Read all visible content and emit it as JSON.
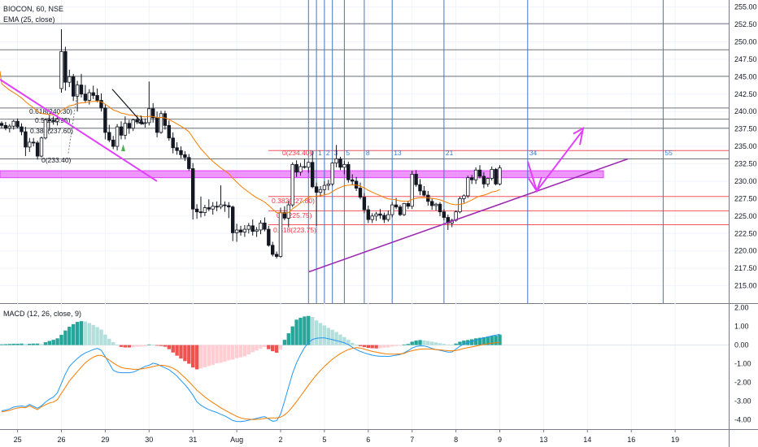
{
  "header": {
    "symbol_line": "BIOCON, 60, NSE",
    "ema_line": "EMA (25, close)",
    "macd_line": "MACD (12, 26, close, 9)"
  },
  "chart_data": {
    "type": "candlestick",
    "symbol": "BIOCON",
    "interval": "60",
    "exchange": "NSE",
    "price_axis": {
      "ylim": [
        212.5,
        256
      ],
      "ticks": [
        "255.00",
        "252.50",
        "250.00",
        "247.50",
        "245.00",
        "242.50",
        "240.00",
        "237.50",
        "235.00",
        "232.50",
        "230.00",
        "227.50",
        "225.00",
        "222.50",
        "220.00",
        "217.50",
        "215.00"
      ]
    },
    "macd_axis": {
      "ylim": [
        -4.5,
        2.2
      ],
      "ticks": [
        "2.00",
        "1.00",
        "0.00",
        "-1.00",
        "-2.00",
        "-3.00",
        "-4.00"
      ]
    },
    "x_labels": [
      {
        "label": "25",
        "i": 4
      },
      {
        "label": "26",
        "i": 15
      },
      {
        "label": "29",
        "i": 26
      },
      {
        "label": "30",
        "i": 37
      },
      {
        "label": "31",
        "i": 48
      },
      {
        "label": "Aug",
        "i": 59
      },
      {
        "label": "2",
        "i": 70
      },
      {
        "label": "5",
        "i": 81
      },
      {
        "label": "6",
        "i": 92
      },
      {
        "label": "7",
        "i": 103
      },
      {
        "label": "8",
        "i": 114
      },
      {
        "label": "9",
        "i": 125
      },
      {
        "label": "13",
        "i": 136
      },
      {
        "label": "14",
        "i": 147
      },
      {
        "label": "16",
        "i": 158
      },
      {
        "label": "19",
        "i": 169
      }
    ],
    "candles": [
      [
        238.3,
        238.6,
        237.6,
        238.0
      ],
      [
        238.0,
        238.5,
        237.3,
        237.6
      ],
      [
        237.6,
        238.2,
        237.0,
        237.9
      ],
      [
        237.9,
        238.8,
        237.4,
        238.6
      ],
      [
        238.6,
        239.0,
        237.6,
        237.8
      ],
      [
        237.8,
        238.3,
        236.6,
        237.1
      ],
      [
        237.1,
        237.8,
        233.6,
        234.9
      ],
      [
        234.9,
        236.2,
        234.2,
        235.6
      ],
      [
        235.6,
        236.2,
        235.0,
        235.5
      ],
      [
        235.5,
        235.8,
        233.1,
        233.6
      ],
      [
        233.6,
        236.4,
        233.4,
        236.2
      ],
      [
        236.2,
        239.0,
        236.0,
        238.8
      ],
      [
        238.8,
        239.5,
        237.2,
        238.7
      ],
      [
        238.7,
        239.3,
        238.1,
        238.6
      ],
      [
        238.6,
        239.2,
        238.0,
        238.9
      ],
      [
        243.3,
        251.8,
        242.7,
        248.6
      ],
      [
        248.6,
        249.3,
        243.0,
        244.2
      ],
      [
        244.2,
        246.0,
        243.5,
        245.0
      ],
      [
        245.0,
        245.4,
        241.5,
        242.2
      ],
      [
        242.2,
        244.4,
        240.0,
        243.8
      ],
      [
        243.8,
        245.4,
        242.0,
        242.5
      ],
      [
        242.5,
        243.8,
        241.3,
        241.6
      ],
      [
        241.6,
        243.2,
        241.0,
        242.7
      ],
      [
        242.7,
        243.7,
        241.8,
        242.3
      ],
      [
        242.3,
        243.3,
        241.3,
        241.6
      ],
      [
        241.6,
        242.6,
        240.0,
        240.5
      ],
      [
        240.5,
        241.0,
        236.0,
        237.0
      ],
      [
        237.0,
        238.1,
        235.6,
        235.9
      ],
      [
        235.9,
        236.5,
        234.6,
        235.0
      ],
      [
        235.0,
        238.2,
        234.4,
        237.8
      ],
      [
        237.8,
        238.6,
        236.0,
        236.6
      ],
      [
        236.6,
        239.3,
        236.0,
        238.3
      ],
      [
        238.3,
        238.8,
        236.8,
        237.6
      ],
      [
        237.6,
        239.0,
        237.2,
        238.8
      ],
      [
        238.8,
        239.5,
        238.2,
        238.5
      ],
      [
        238.5,
        239.0,
        238.1,
        238.3
      ],
      [
        238.3,
        239.0,
        237.7,
        238.4
      ],
      [
        238.4,
        244.3,
        238.0,
        240.4
      ],
      [
        240.4,
        241.2,
        238.4,
        239.1
      ],
      [
        239.1,
        240.0,
        236.3,
        237.0
      ],
      [
        237.0,
        240.1,
        236.8,
        239.7
      ],
      [
        239.7,
        240.1,
        237.4,
        238.0
      ],
      [
        238.0,
        238.7,
        235.8,
        236.2
      ],
      [
        236.2,
        237.0,
        234.0,
        234.8
      ],
      [
        234.8,
        235.6,
        233.8,
        234.4
      ],
      [
        234.4,
        235.0,
        233.3,
        233.8
      ],
      [
        233.8,
        234.3,
        232.9,
        233.4
      ],
      [
        233.4,
        233.9,
        231.5,
        231.8
      ],
      [
        231.8,
        232.6,
        224.5,
        226.0
      ],
      [
        226.0,
        226.7,
        224.6,
        225.6
      ],
      [
        225.6,
        227.8,
        224.8,
        225.5
      ],
      [
        225.5,
        226.6,
        225.0,
        226.2
      ],
      [
        226.2,
        227.4,
        225.7,
        226.0
      ],
      [
        226.0,
        227.0,
        225.2,
        226.4
      ],
      [
        226.4,
        227.1,
        225.7,
        226.3
      ],
      [
        226.3,
        229.4,
        226.0,
        226.6
      ],
      [
        226.6,
        227.1,
        225.6,
        226.5
      ],
      [
        226.5,
        227.0,
        224.7,
        226.3
      ],
      [
        226.3,
        226.5,
        221.4,
        222.6
      ],
      [
        222.6,
        223.9,
        221.3,
        223.0
      ],
      [
        223.0,
        223.6,
        222.2,
        222.7
      ],
      [
        222.7,
        223.7,
        222.0,
        223.1
      ],
      [
        223.1,
        224.0,
        222.5,
        223.6
      ],
      [
        223.6,
        224.5,
        222.2,
        222.8
      ],
      [
        222.8,
        223.4,
        222.0,
        223.0
      ],
      [
        223.0,
        224.4,
        222.4,
        224.0
      ],
      [
        224.0,
        224.8,
        222.8,
        223.1
      ],
      [
        223.1,
        223.6,
        220.6,
        220.8
      ],
      [
        220.8,
        221.3,
        219.2,
        219.5
      ],
      [
        219.5,
        219.9,
        218.9,
        219.2
      ],
      [
        219.2,
        226.2,
        219.0,
        225.5
      ],
      [
        225.5,
        226.4,
        224.4,
        224.7
      ],
      [
        224.7,
        227.2,
        223.4,
        226.6
      ],
      [
        226.6,
        232.7,
        226.3,
        232.4
      ],
      [
        232.4,
        233.0,
        230.6,
        231.3
      ],
      [
        231.3,
        232.6,
        230.8,
        232.1
      ],
      [
        232.1,
        233.2,
        231.8,
        232.0
      ],
      [
        232.0,
        232.8,
        231.2,
        232.7
      ],
      [
        232.7,
        234.3,
        229.0,
        229.2
      ],
      [
        229.2,
        229.8,
        223.6,
        228.4
      ],
      [
        228.4,
        229.3,
        227.8,
        228.8
      ],
      [
        228.8,
        230.0,
        228.0,
        229.4
      ],
      [
        229.4,
        230.2,
        228.7,
        229.6
      ],
      [
        229.6,
        232.7,
        229.3,
        232.6
      ],
      [
        232.6,
        235.2,
        232.0,
        233.2
      ],
      [
        233.2,
        233.5,
        231.6,
        232.0
      ],
      [
        232.0,
        232.9,
        231.0,
        232.4
      ],
      [
        232.4,
        232.8,
        229.8,
        230.2
      ],
      [
        230.2,
        231.0,
        229.4,
        230.0
      ],
      [
        230.0,
        230.6,
        228.6,
        229.0
      ],
      [
        229.0,
        229.8,
        227.4,
        227.7
      ],
      [
        227.7,
        228.3,
        225.4,
        225.9
      ],
      [
        225.9,
        226.5,
        224.0,
        224.5
      ],
      [
        224.5,
        225.4,
        224.0,
        225.0
      ],
      [
        225.0,
        225.6,
        224.3,
        225.3
      ],
      [
        225.3,
        226.0,
        224.6,
        225.1
      ],
      [
        225.1,
        225.5,
        224.0,
        224.5
      ],
      [
        224.5,
        225.8,
        224.2,
        225.2
      ],
      [
        225.2,
        227.0,
        224.8,
        226.6
      ],
      [
        226.6,
        227.6,
        226.0,
        226.3
      ],
      [
        226.3,
        226.6,
        225.0,
        225.2
      ],
      [
        225.2,
        226.9,
        225.0,
        226.8
      ],
      [
        226.8,
        227.2,
        226.0,
        226.4
      ],
      [
        226.4,
        231.5,
        226.0,
        231.0
      ],
      [
        231.0,
        231.6,
        229.2,
        229.5
      ],
      [
        229.5,
        230.3,
        228.0,
        228.6
      ],
      [
        228.6,
        229.3,
        227.8,
        228.0
      ],
      [
        228.0,
        228.6,
        226.5,
        227.1
      ],
      [
        227.1,
        227.5,
        225.9,
        226.5
      ],
      [
        226.5,
        226.9,
        225.8,
        226.7
      ],
      [
        226.7,
        227.0,
        225.0,
        225.6
      ],
      [
        225.6,
        226.0,
        224.4,
        224.8
      ],
      [
        224.8,
        225.2,
        223.0,
        224.0
      ],
      [
        224.0,
        224.6,
        223.4,
        224.4
      ],
      [
        224.4,
        225.8,
        224.2,
        225.6
      ],
      [
        225.6,
        227.8,
        225.4,
        227.5
      ],
      [
        227.5,
        228.1,
        226.9,
        227.9
      ],
      [
        227.9,
        230.8,
        227.6,
        230.5
      ],
      [
        230.5,
        230.9,
        229.6,
        230.2
      ],
      [
        230.2,
        232.0,
        229.6,
        231.6
      ],
      [
        231.6,
        232.3,
        230.4,
        230.7
      ],
      [
        230.7,
        231.3,
        229.0,
        229.6
      ],
      [
        229.6,
        230.5,
        229.2,
        230.4
      ],
      [
        230.4,
        232.1,
        230.1,
        231.7
      ],
      [
        231.7,
        231.9,
        229.4,
        229.6
      ],
      [
        229.6,
        232.3,
        229.4,
        231.9
      ]
    ],
    "horizontal_levels": [
      {
        "value": 252.6,
        "color": "#131722"
      },
      {
        "value": 248.85,
        "color": "#131722"
      },
      {
        "value": 245.05,
        "color": "#131722"
      },
      {
        "value": 240.5,
        "color": "#131722"
      },
      {
        "value": 238.9,
        "color": "#131722"
      },
      {
        "value": 237.6,
        "color": "#131722"
      },
      {
        "value": 233.2,
        "color": "#131722"
      },
      {
        "value": 234.4,
        "color": "#f23645"
      },
      {
        "value": 227.8,
        "color": "#f23645"
      },
      {
        "value": 225.75,
        "color": "#f23645"
      },
      {
        "value": 223.75,
        "color": "#f23645"
      }
    ],
    "fib_labels_left": [
      "0.618(240.30)",
      "0.5(238.95)",
      "0.382(237.60)",
      "0(233.40)"
    ],
    "fib_labels_right": [
      "0(234.40)",
      "0.382(227.80)",
      "0.5(225.75)",
      "0.618(223.75)"
    ],
    "fib_time_labels": [
      "0",
      "1",
      "2",
      "3",
      "5",
      "8",
      "13",
      "21",
      "34",
      "55"
    ],
    "zone": {
      "from": 230.5,
      "to": 231.5,
      "color": "#e040fb"
    },
    "macd_hist": [
      0.04,
      0.05,
      0.06,
      0.07,
      0.07,
      0.08,
      0.06,
      0.07,
      0.08,
      0.08,
      0.05,
      0.15,
      0.22,
      0.28,
      0.36,
      0.55,
      0.78,
      0.98,
      1.12,
      1.24,
      1.28,
      1.26,
      1.18,
      1.08,
      0.96,
      0.83,
      0.56,
      0.34,
      0.15,
      0.02,
      -0.1,
      -0.13,
      -0.13,
      -0.12,
      -0.09,
      -0.08,
      -0.06,
      0.03,
      0.02,
      -0.02,
      -0.05,
      -0.09,
      -0.22,
      -0.4,
      -0.57,
      -0.72,
      -0.86,
      -1.0,
      -1.2,
      -1.3,
      -1.25,
      -1.19,
      -1.12,
      -1.06,
      -0.98,
      -0.95,
      -0.89,
      -0.82,
      -0.78,
      -0.7,
      -0.66,
      -0.6,
      -0.5,
      -0.38,
      -0.29,
      -0.19,
      -0.11,
      -0.22,
      -0.33,
      -0.41,
      -0.25,
      0.28,
      0.63,
      1.0,
      1.36,
      1.46,
      1.53,
      1.56,
      1.5,
      1.32,
      1.18,
      1.05,
      0.92,
      0.82,
      0.7,
      0.56,
      0.43,
      0.28,
      0.12,
      0.02,
      -0.06,
      -0.11,
      -0.15,
      -0.17,
      -0.18,
      -0.17,
      -0.14,
      -0.13,
      -0.08,
      -0.05,
      -0.03,
      0.03,
      0.06,
      0.18,
      0.24,
      0.27,
      0.25,
      0.22,
      0.18,
      0.14,
      0.1,
      0.06,
      0.03,
      0.01,
      0.08,
      0.18,
      0.24,
      0.27,
      0.31,
      0.36,
      0.39,
      0.42,
      0.45,
      0.48,
      0.5,
      0.56
    ],
    "macd_line": [
      -3.52,
      -3.48,
      -3.42,
      -3.32,
      -3.28,
      -3.26,
      -3.3,
      -3.18,
      -3.28,
      -3.38,
      -3.25,
      -3.05,
      -2.9,
      -2.78,
      -2.55,
      -2.05,
      -1.55,
      -1.15,
      -0.92,
      -0.72,
      -0.55,
      -0.42,
      -0.33,
      -0.24,
      -0.18,
      -0.28,
      -0.62,
      -0.98,
      -1.35,
      -1.45,
      -1.48,
      -1.48,
      -1.48,
      -1.45,
      -1.36,
      -1.25,
      -1.14,
      -1.08,
      -0.97,
      -1.02,
      -1.12,
      -1.22,
      -1.32,
      -1.48,
      -1.66,
      -1.9,
      -2.12,
      -2.38,
      -2.68,
      -3.04,
      -3.22,
      -3.35,
      -3.46,
      -3.54,
      -3.61,
      -3.71,
      -3.79,
      -3.91,
      -4.04,
      -4.09,
      -4.1,
      -4.07,
      -4.02,
      -3.97,
      -3.92,
      -3.87,
      -3.83,
      -3.95,
      -4.08,
      -4.05,
      -3.7,
      -3.0,
      -2.25,
      -1.52,
      -0.95,
      -0.52,
      -0.14,
      0.13,
      0.3,
      0.36,
      0.38,
      0.38,
      0.34,
      0.29,
      0.24,
      0.18,
      0.12,
      0.02,
      -0.12,
      -0.24,
      -0.34,
      -0.42,
      -0.48,
      -0.54,
      -0.58,
      -0.6,
      -0.6,
      -0.61,
      -0.58,
      -0.54,
      -0.5,
      -0.42,
      -0.3,
      -0.16,
      -0.08,
      -0.04,
      -0.05,
      -0.1,
      -0.18,
      -0.24,
      -0.28,
      -0.33,
      -0.38,
      -0.37,
      -0.22,
      -0.06,
      0.06,
      0.13,
      0.19,
      0.26,
      0.32,
      0.38,
      0.44,
      0.49,
      0.53,
      0.58
    ],
    "signal_line": [
      -3.58,
      -3.54,
      -3.5,
      -3.42,
      -3.37,
      -3.34,
      -3.36,
      -3.25,
      -3.36,
      -3.46,
      -3.3,
      -3.2,
      -3.1,
      -3.05,
      -2.92,
      -2.58,
      -2.26,
      -1.92,
      -1.67,
      -1.42,
      -1.18,
      -0.95,
      -0.78,
      -0.65,
      -0.56,
      -0.55,
      -0.66,
      -0.8,
      -0.96,
      -1.09,
      -1.2,
      -1.25,
      -1.27,
      -1.3,
      -1.3,
      -1.28,
      -1.24,
      -1.2,
      -1.15,
      -1.1,
      -1.08,
      -1.1,
      -1.15,
      -1.24,
      -1.36,
      -1.56,
      -1.74,
      -1.96,
      -2.18,
      -2.42,
      -2.6,
      -2.78,
      -2.94,
      -3.08,
      -3.22,
      -3.36,
      -3.48,
      -3.6,
      -3.71,
      -3.82,
      -3.9,
      -3.95,
      -3.97,
      -3.99,
      -3.98,
      -3.96,
      -3.93,
      -3.91,
      -3.9,
      -3.9,
      -3.86,
      -3.74,
      -3.55,
      -3.3,
      -3.03,
      -2.74,
      -2.44,
      -2.14,
      -1.86,
      -1.6,
      -1.36,
      -1.14,
      -0.94,
      -0.76,
      -0.6,
      -0.46,
      -0.34,
      -0.24,
      -0.18,
      -0.14,
      -0.16,
      -0.22,
      -0.28,
      -0.34,
      -0.38,
      -0.42,
      -0.46,
      -0.48,
      -0.49,
      -0.49,
      -0.47,
      -0.45,
      -0.36,
      -0.3,
      -0.26,
      -0.22,
      -0.21,
      -0.21,
      -0.22,
      -0.24,
      -0.26,
      -0.28,
      -0.3,
      -0.31,
      -0.29,
      -0.24,
      -0.18,
      -0.14,
      -0.1,
      -0.06,
      -0.01,
      0.03,
      0.07,
      0.1,
      0.13,
      0.15
    ]
  },
  "colors": {
    "up": "#131722",
    "down": "#131722",
    "grid": "#f0f3fa",
    "ema": "#f57c00",
    "macd": "#2196f3",
    "signal": "#f57c00",
    "fib": "#f23645",
    "time": "#3f78c5",
    "magenta": "#e040fb",
    "trend": "#9c27b0"
  }
}
